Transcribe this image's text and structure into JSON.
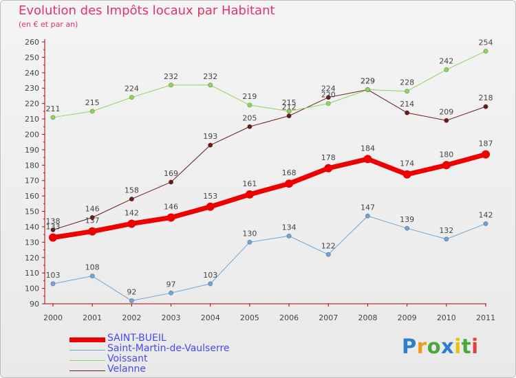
{
  "chart_data": {
    "type": "line",
    "title": "Evolution des Impôts locaux par Habitant",
    "subtitle": "(en € et par an)",
    "x": [
      "2000",
      "2001",
      "2002",
      "2003",
      "2004",
      "2005",
      "2006",
      "2007",
      "2008",
      "2009",
      "2010",
      "2011"
    ],
    "ylim": [
      90,
      260
    ],
    "yticks": [
      90,
      100,
      110,
      120,
      130,
      140,
      150,
      160,
      170,
      180,
      190,
      200,
      210,
      220,
      230,
      240,
      250,
      260
    ],
    "grid": false,
    "legend_position": "bottom-left",
    "series": [
      {
        "name": "Velanne",
        "color": "#6b1a1a",
        "width": 1,
        "values": [
          138,
          146,
          158,
          169,
          193,
          205,
          212,
          224,
          229,
          214,
          209,
          218
        ]
      },
      {
        "name": "Voissant",
        "color": "#8ed45a",
        "width": 1,
        "values": [
          211,
          215,
          224,
          232,
          232,
          219,
          215,
          220,
          229,
          228,
          242,
          254
        ]
      },
      {
        "name": "Saint-Martin-de-Vaulserre",
        "color": "#6fa5d6",
        "width": 1,
        "values": [
          103,
          108,
          92,
          97,
          103,
          130,
          134,
          122,
          147,
          139,
          132,
          142
        ]
      },
      {
        "name": "SAINT-BUEIL",
        "color": "#ee0000",
        "width": 7,
        "values": [
          133,
          137,
          142,
          146,
          153,
          161,
          168,
          178,
          184,
          174,
          180,
          187
        ]
      }
    ],
    "legend": [
      "SAINT-BUEIL",
      "Saint-Martin-de-Vaulserre",
      "Voissant",
      "Velanne"
    ]
  },
  "logo": {
    "letters": [
      {
        "ch": "P",
        "color": "#2e7dc8"
      },
      {
        "ch": "r",
        "color": "#f29a1a"
      },
      {
        "ch": "o",
        "color": "#4aa83a"
      },
      {
        "ch": "x",
        "color": "#2e7dc8"
      },
      {
        "ch": "i",
        "color": "#e8c010"
      },
      {
        "ch": "t",
        "color": "#4aa83a"
      },
      {
        "ch": "i",
        "color": "#e04040"
      }
    ]
  }
}
